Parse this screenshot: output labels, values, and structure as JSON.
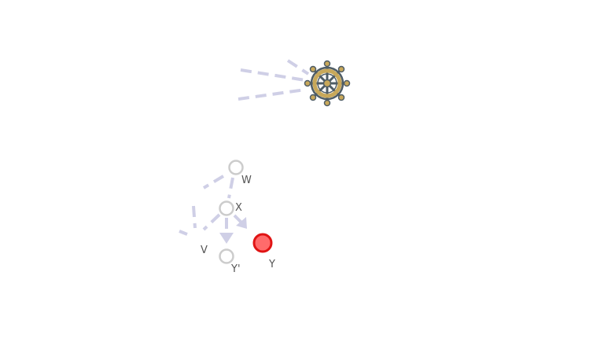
{
  "colors": {
    "edge": "#cfcfe6",
    "node_stroke": "#cccccc",
    "node_fill": "#ffffff",
    "highlight_fill": "#ff6b6b",
    "highlight_stroke": "#e01414",
    "wheel_gold": "#c8a85a",
    "wheel_dark": "#4f5d66",
    "label": "#555555"
  },
  "icons": {
    "wheel": "ship-wheel-icon"
  },
  "nodes": {
    "w": {
      "label": "W"
    },
    "x": {
      "label": "X"
    },
    "v": {
      "label": "V"
    },
    "y_prime": {
      "label": "Y'"
    },
    "y": {
      "label": "Y"
    }
  }
}
